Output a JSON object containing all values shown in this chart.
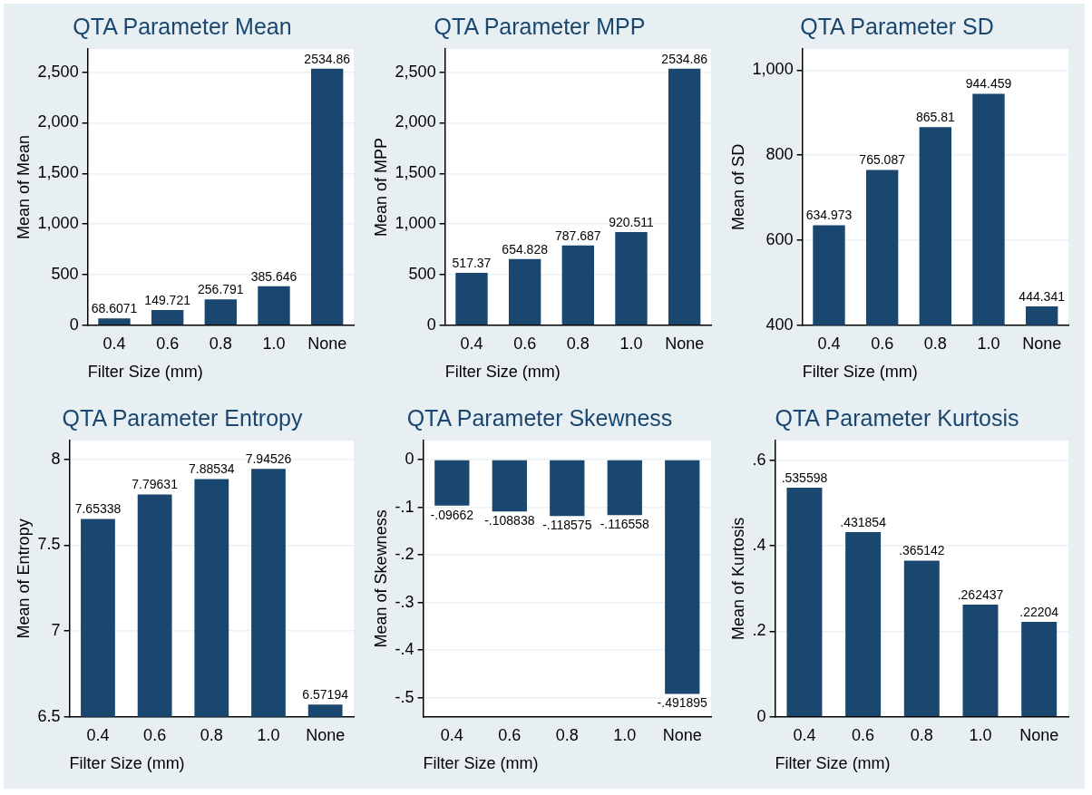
{
  "chart_data": [
    {
      "type": "bar",
      "title": "QTA Parameter Mean",
      "xlabel": "Filter Size (mm)",
      "ylabel": "Mean of Mean",
      "categories": [
        "0.4",
        "0.6",
        "0.8",
        "1.0",
        "None"
      ],
      "values": [
        68.6071,
        149.721,
        256.791,
        385.646,
        2534.86
      ],
      "value_labels": [
        "68.6071",
        "149.721",
        "256.791",
        "385.646",
        "2534.86"
      ],
      "color": "#1a476f",
      "ylim": [
        0,
        2730
      ],
      "yticks": [
        0,
        500,
        {
          "value": 1000,
          "label": "1,000"
        },
        {
          "value": 1500,
          "label": "1,500"
        },
        {
          "value": 2000,
          "label": "2,000"
        },
        {
          "value": 2500,
          "label": "2,500"
        }
      ],
      "grid": "y"
    },
    {
      "type": "bar",
      "title": "QTA Parameter MPP",
      "xlabel": "Filter Size (mm)",
      "ylabel": "Mean of MPP",
      "categories": [
        "0.4",
        "0.6",
        "0.8",
        "1.0",
        "None"
      ],
      "values": [
        517.37,
        654.828,
        787.687,
        920.511,
        2534.86
      ],
      "value_labels": [
        "517.37",
        "654.828",
        "787.687",
        "920.511",
        "2534.86"
      ],
      "color": "#1a476f",
      "ylim": [
        0,
        2730
      ],
      "yticks": [
        0,
        500,
        {
          "value": 1000,
          "label": "1,000"
        },
        {
          "value": 1500,
          "label": "1,500"
        },
        {
          "value": 2000,
          "label": "2,000"
        },
        {
          "value": 2500,
          "label": "2,500"
        }
      ],
      "grid": "y"
    },
    {
      "type": "bar",
      "title": "QTA Parameter SD",
      "xlabel": "Filter Size (mm)",
      "ylabel": "Mean of SD",
      "categories": [
        "0.4",
        "0.6",
        "0.8",
        "1.0",
        "None"
      ],
      "values": [
        634.973,
        765.087,
        865.81,
        944.459,
        444.341
      ],
      "value_labels": [
        "634.973",
        "765.087",
        "865.81",
        "944.459",
        "444.341"
      ],
      "color": "#1a476f",
      "ylim": [
        400,
        1050
      ],
      "yticks": [
        400,
        600,
        800,
        {
          "value": 1000,
          "label": "1,000"
        }
      ],
      "grid": "y"
    },
    {
      "type": "bar",
      "title": "QTA Parameter Entropy",
      "xlabel": "Filter Size (mm)",
      "ylabel": "Mean of Entropy",
      "categories": [
        "0.4",
        "0.6",
        "0.8",
        "1.0",
        "None"
      ],
      "values": [
        7.65338,
        7.79631,
        7.88534,
        7.94526,
        6.57194
      ],
      "value_labels": [
        "7.65338",
        "7.79631",
        "7.88534",
        "7.94526",
        "6.57194"
      ],
      "color": "#1a476f",
      "ylim": [
        6.5,
        8.11
      ],
      "yticks": [
        6.5,
        7,
        7.5,
        8
      ],
      "grid": "y"
    },
    {
      "type": "bar",
      "title": "QTA Parameter Skewness",
      "xlabel": "Filter Size (mm)",
      "ylabel": "Mean of Skewness",
      "categories": [
        "0.4",
        "0.6",
        "0.8",
        "1.0",
        "None"
      ],
      "values": [
        -0.09662,
        -0.108838,
        -0.118575,
        -0.116558,
        -0.491895
      ],
      "value_labels": [
        "-.09662",
        "-.108838",
        "-.118575",
        "-.116558",
        "-.491895"
      ],
      "color": "#1a476f",
      "ylim": [
        -0.54,
        0.04
      ],
      "yticks": [
        {
          "value": -0.5,
          "label": "-.5"
        },
        {
          "value": -0.4,
          "label": "-.4"
        },
        {
          "value": -0.3,
          "label": "-.3"
        },
        {
          "value": -0.2,
          "label": "-.2"
        },
        {
          "value": -0.1,
          "label": "-.1"
        },
        0
      ],
      "grid": "y"
    },
    {
      "type": "bar",
      "title": "QTA Parameter Kurtosis",
      "xlabel": "Filter Size (mm)",
      "ylabel": "Mean of Kurtosis",
      "categories": [
        "0.4",
        "0.6",
        "0.8",
        "1.0",
        "None"
      ],
      "values": [
        0.535598,
        0.431854,
        0.365142,
        0.262437,
        0.22204
      ],
      "value_labels": [
        ".535598",
        ".431854",
        ".365142",
        ".262437",
        ".22204"
      ],
      "color": "#1a476f",
      "ylim": [
        0,
        0.646
      ],
      "yticks": [
        0,
        {
          "value": 0.2,
          "label": ".2"
        },
        {
          "value": 0.4,
          "label": ".4"
        },
        {
          "value": 0.6,
          "label": ".6"
        }
      ],
      "grid": "y"
    }
  ]
}
